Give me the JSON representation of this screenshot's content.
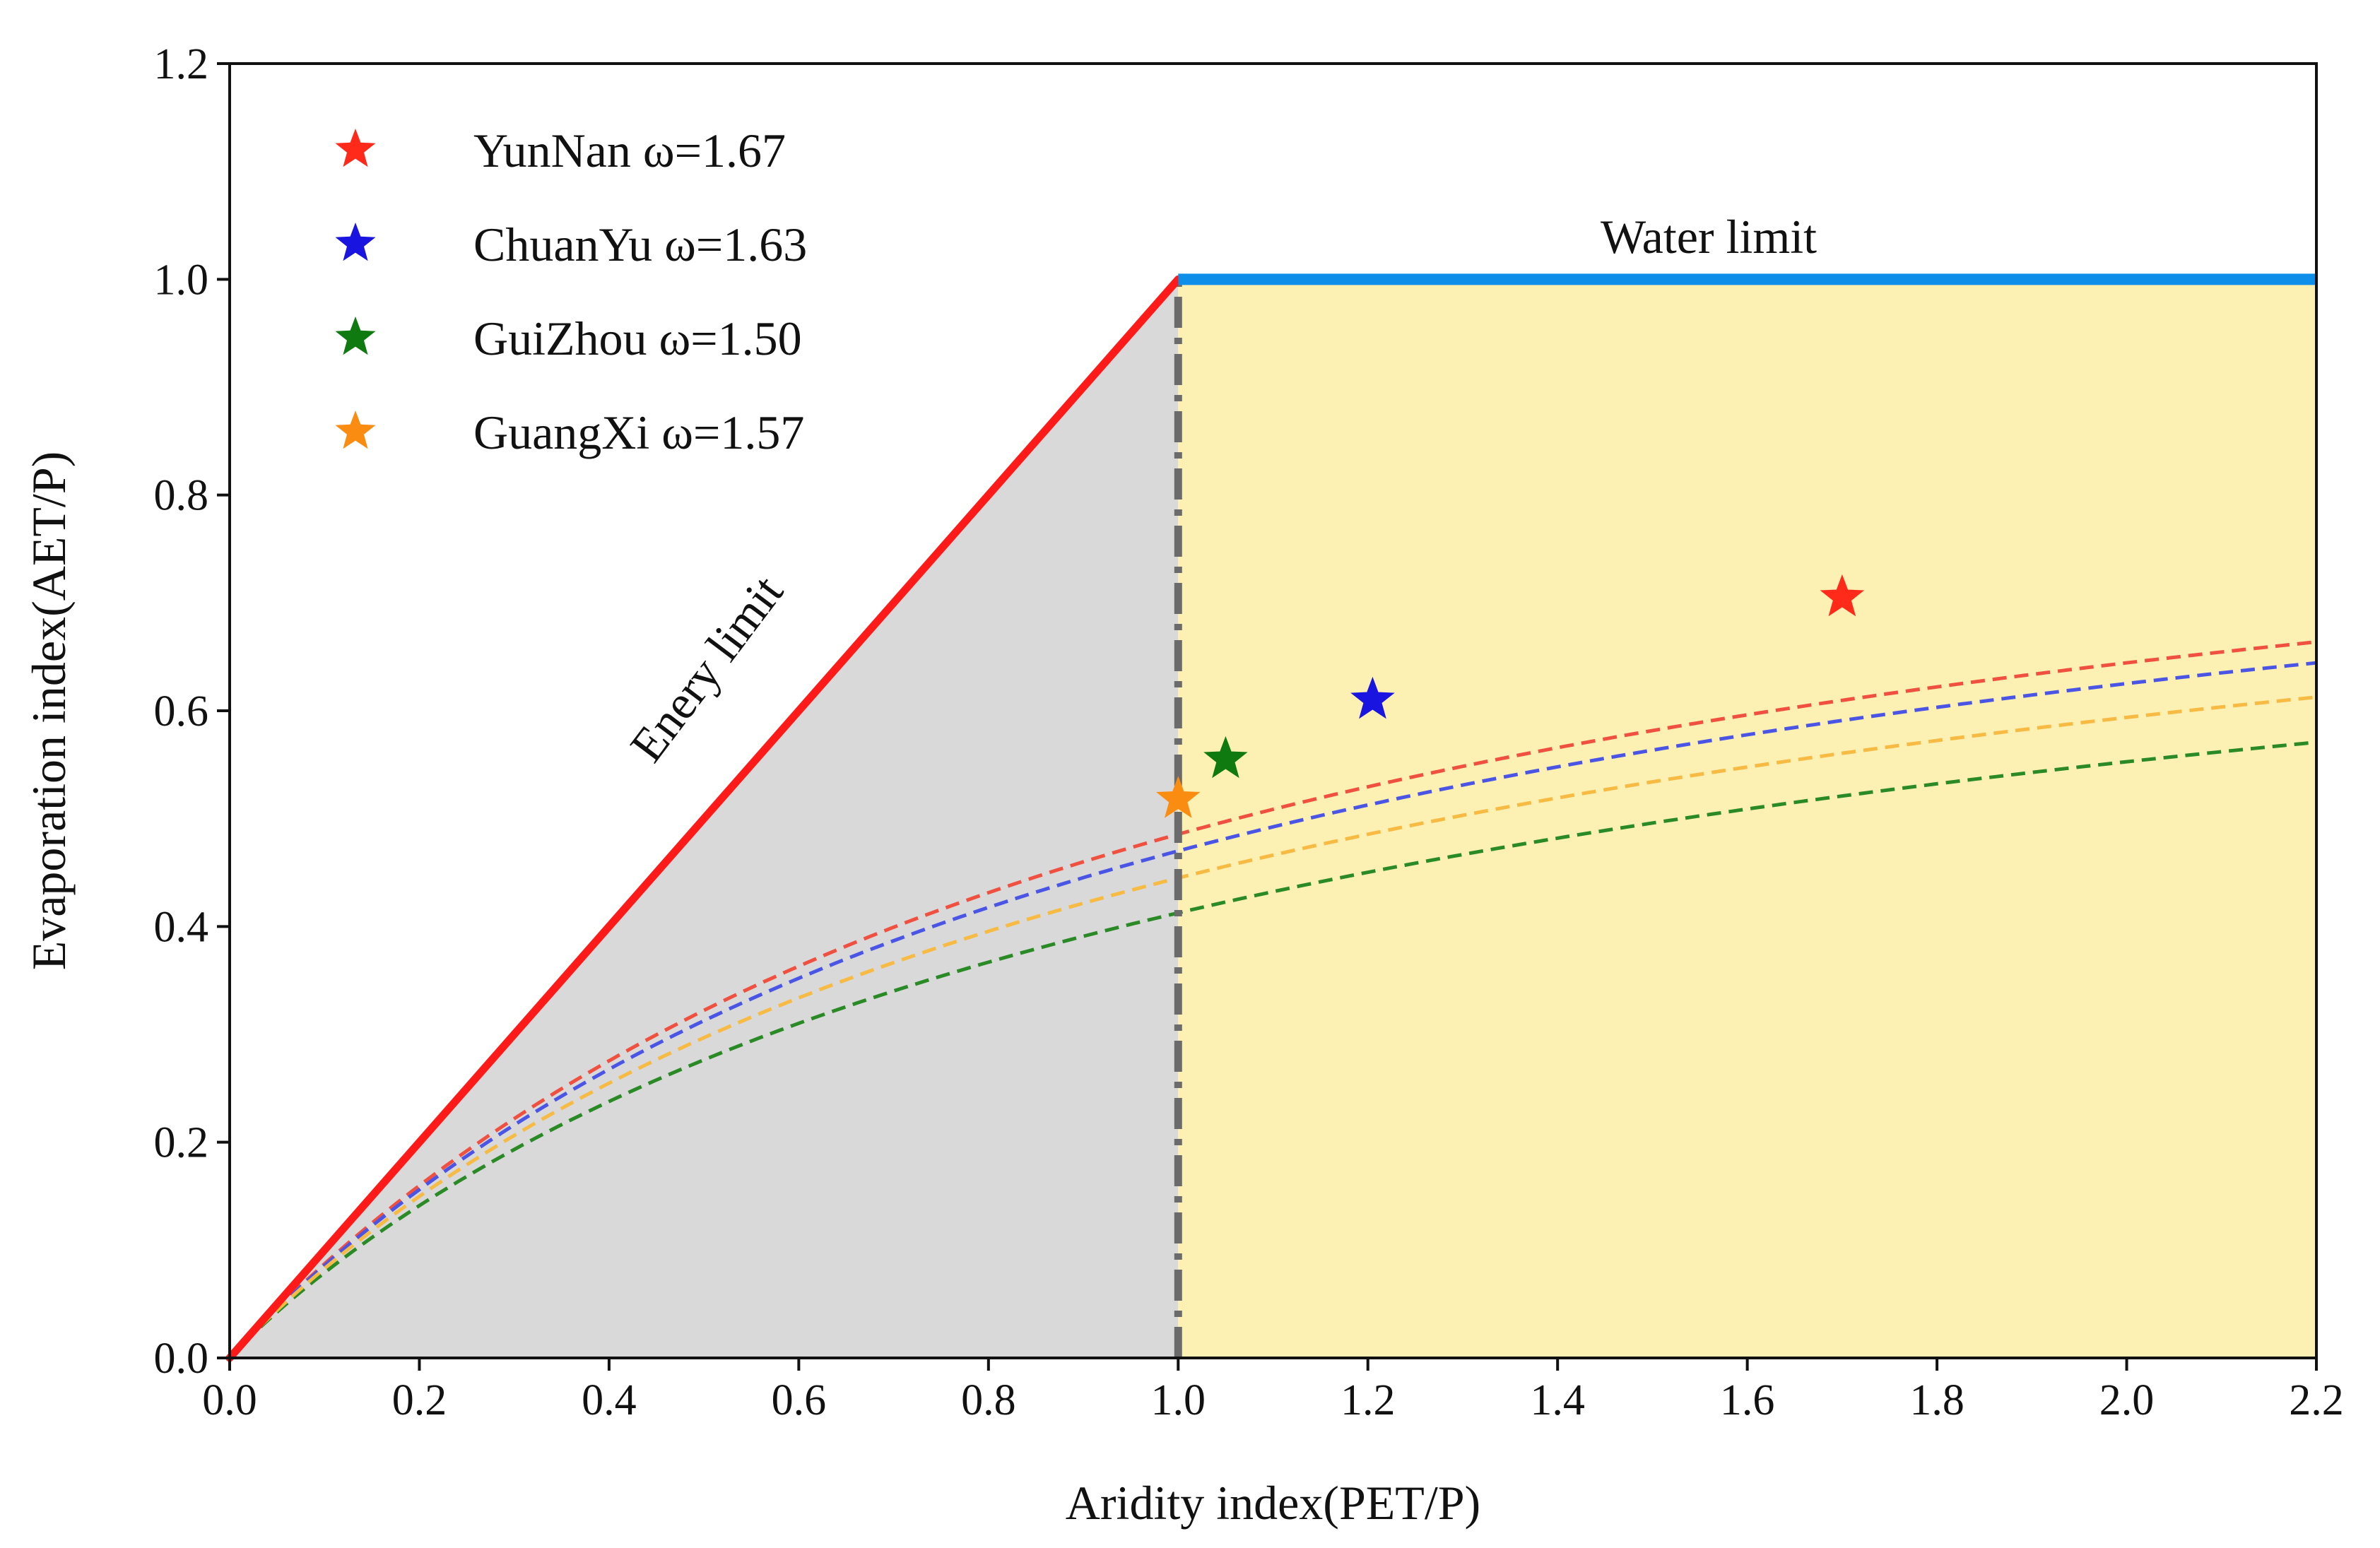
{
  "chart_data": {
    "type": "line",
    "title": "",
    "xlabel": "Aridity index(PET/P)",
    "ylabel": "Evaporation index(AET/P)",
    "xlim": [
      0.0,
      2.2
    ],
    "ylim": [
      0.0,
      1.2
    ],
    "xticks": [
      "0.0",
      "0.2",
      "0.4",
      "0.6",
      "0.8",
      "1.0",
      "1.2",
      "1.4",
      "1.6",
      "1.8",
      "2.0",
      "2.2"
    ],
    "yticks": [
      "0.0",
      "0.2",
      "0.4",
      "0.6",
      "0.8",
      "1.0",
      "1.2"
    ],
    "grid": false,
    "legend_position": "top-left",
    "regions": [
      {
        "name": "energy-limited",
        "x_range": [
          0.0,
          1.0
        ],
        "color": "#d9d9d9"
      },
      {
        "name": "water-limited",
        "x_range": [
          1.0,
          2.2
        ],
        "color": "#fdf0b3"
      }
    ],
    "limit_lines": {
      "energy": {
        "label": "Enery limit",
        "x": [
          0.0,
          1.0
        ],
        "y": [
          0.0,
          1.0
        ],
        "color": "#ff1a1a"
      },
      "water": {
        "label": "Water limit",
        "x": [
          1.0,
          2.2
        ],
        "y": [
          1.0,
          1.0
        ],
        "color": "#0d8ee8"
      },
      "divider": {
        "x": 1.0,
        "color": "#6b6b6b"
      }
    },
    "series": [
      {
        "name": "YunNan ω=1.67",
        "omega": 1.67,
        "color": "#ff2a1a",
        "curve_color": "#f0503f",
        "point": {
          "x": 1.7,
          "y": 0.705
        }
      },
      {
        "name": "ChuanYu ω=1.63",
        "omega": 1.63,
        "color": "#1a14e0",
        "curve_color": "#4a55e6",
        "point": {
          "x": 1.205,
          "y": 0.61
        }
      },
      {
        "name": "GuiZhou ω=1.50",
        "omega": 1.5,
        "color": "#0f7a0f",
        "curve_color": "#2a8a25",
        "point": {
          "x": 1.05,
          "y": 0.555
        }
      },
      {
        "name": "GuangXi ω=1.57",
        "omega": 1.57,
        "color": "#fb8c12",
        "curve_color": "#f7bb44",
        "point": {
          "x": 1.0,
          "y": 0.518
        }
      }
    ]
  }
}
